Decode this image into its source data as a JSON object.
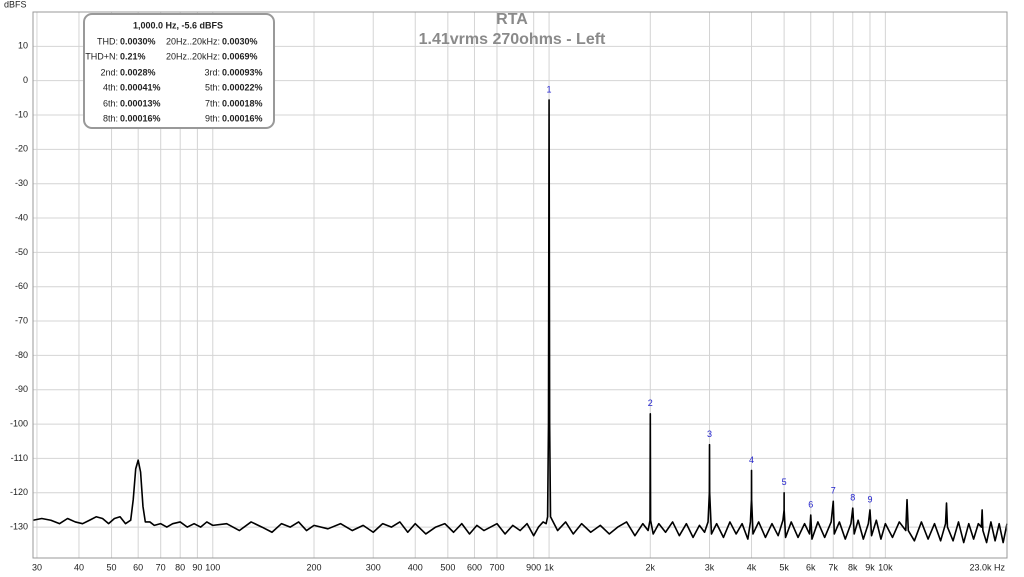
{
  "chart_data": {
    "type": "line",
    "title": "RTA",
    "subtitle": "1.41vrms 270ohms - Left",
    "y_label": "dBFS",
    "log_x": true,
    "grid": true,
    "xlim": [
      29.2,
      23000
    ],
    "ylim": [
      -139,
      20
    ],
    "xticks": [
      30,
      40,
      50,
      60,
      70,
      80,
      90,
      100,
      200,
      300,
      400,
      500,
      600,
      700,
      900,
      {
        "value": 1000,
        "label": "1k"
      },
      {
        "value": 2000,
        "label": "2k"
      },
      {
        "value": 3000,
        "label": "3k"
      },
      {
        "value": 4000,
        "label": "4k"
      },
      {
        "value": 5000,
        "label": "5k"
      },
      {
        "value": 6000,
        "label": "6k"
      },
      {
        "value": 7000,
        "label": "7k"
      },
      {
        "value": 8000,
        "label": "8k"
      },
      {
        "value": 9000,
        "label": "9k"
      },
      {
        "value": 10000,
        "label": "10k"
      },
      {
        "value": 23000,
        "label": "23.0k Hz"
      }
    ],
    "yticks": [
      10,
      0,
      -10,
      -20,
      -30,
      -40,
      -50,
      -60,
      -70,
      -80,
      -90,
      -100,
      -110,
      -120,
      -130
    ],
    "x": [
      29.2,
      31,
      33,
      35,
      37,
      39,
      41,
      43,
      45,
      47,
      49,
      51,
      53,
      55,
      57,
      58,
      59,
      60,
      61,
      62,
      63,
      65,
      67,
      70,
      73,
      76,
      80,
      84,
      88,
      92,
      96,
      100,
      110,
      120,
      130,
      140,
      150,
      160,
      170,
      180,
      190,
      200,
      220,
      240,
      260,
      280,
      300,
      320,
      340,
      360,
      380,
      400,
      430,
      460,
      490,
      520,
      550,
      580,
      610,
      640,
      670,
      700,
      740,
      780,
      820,
      860,
      900,
      930,
      960,
      980,
      990,
      996,
      1000,
      1004,
      1010,
      1060,
      1120,
      1180,
      1250,
      1330,
      1420,
      1510,
      1600,
      1700,
      1800,
      1900,
      1970,
      1996,
      2000,
      2004,
      2040,
      2120,
      2220,
      2330,
      2440,
      2560,
      2680,
      2800,
      2900,
      2970,
      2997,
      3000,
      3003,
      3040,
      3150,
      3300,
      3450,
      3600,
      3750,
      3900,
      3970,
      3998,
      4000,
      4002,
      4040,
      4200,
      4400,
      4600,
      4800,
      4960,
      4999,
      5000,
      5001,
      5050,
      5250,
      5500,
      5750,
      5950,
      6000,
      6050,
      6300,
      6600,
      6900,
      7000,
      7050,
      7300,
      7600,
      7900,
      8000,
      8080,
      8300,
      8600,
      8900,
      9000,
      9100,
      9400,
      9700,
      10000,
      10500,
      11000,
      11500,
      11600,
      11700,
      12200,
      12800,
      13400,
      14000,
      14600,
      15100,
      15200,
      15300,
      15900,
      16500,
      17100,
      17700,
      18300,
      18900,
      19300,
      19400,
      19500,
      20000,
      20600,
      21200,
      21800,
      22400,
      23000
    ],
    "series": [
      {
        "color": "#000000",
        "values": [
          -128,
          -127.5,
          -128,
          -129,
          -127.5,
          -128.5,
          -129,
          -128,
          -127,
          -127.5,
          -129,
          -127.5,
          -127,
          -129,
          -128,
          -122,
          -113,
          -110.5,
          -114,
          -124,
          -128.5,
          -128.5,
          -129.5,
          -129,
          -130,
          -129,
          -128.5,
          -130,
          -129,
          -130,
          -128.5,
          -129.5,
          -129,
          -131,
          -128.5,
          -130,
          -131.5,
          -129,
          -130,
          -128.5,
          -131,
          -129.5,
          -130.5,
          -129,
          -131,
          -129.5,
          -131.5,
          -129,
          -130,
          -128.5,
          -131.5,
          -129,
          -132,
          -130,
          -129,
          -131.5,
          -129,
          -132,
          -129.5,
          -131,
          -130,
          -129,
          -132,
          -129.5,
          -131,
          -129,
          -132.5,
          -130,
          -128.5,
          -129,
          -127,
          -100,
          -5.6,
          -100,
          -127,
          -131,
          -128.5,
          -132,
          -129,
          -131.5,
          -129.5,
          -132,
          -130,
          -128.5,
          -132.5,
          -129,
          -131,
          -128,
          -97,
          -128,
          -132,
          -129,
          -131.5,
          -128.5,
          -132.5,
          -129,
          -133,
          -129.5,
          -131.5,
          -128.5,
          -120,
          -106,
          -120,
          -132,
          -129,
          -133,
          -128.5,
          -132,
          -129,
          -133.5,
          -128.5,
          -122,
          -113.5,
          -122,
          -132,
          -128.5,
          -133,
          -129,
          -132.5,
          -128,
          -125,
          -120,
          -125,
          -133,
          -128.5,
          -133,
          -129,
          -132,
          -126.5,
          -133.5,
          -128.5,
          -133,
          -128.5,
          -122.5,
          -132,
          -128.5,
          -133.5,
          -129,
          -124.5,
          -132,
          -128,
          -133.5,
          -129,
          -125,
          -132.5,
          -128,
          -133.5,
          -129,
          -133,
          -128.5,
          -131,
          -122,
          -131,
          -134,
          -128.5,
          -133.5,
          -129,
          -134,
          -129,
          -123,
          -130,
          -134,
          -128.5,
          -134.5,
          -129,
          -133.5,
          -129,
          -130,
          -125,
          -131,
          -134.5,
          -128.5,
          -134,
          -129,
          -134.5,
          -129
        ]
      }
    ],
    "markers": [
      {
        "label": "1",
        "x": 1000,
        "y": -5.6
      },
      {
        "label": "2",
        "x": 2000,
        "y": -97
      },
      {
        "label": "3",
        "x": 3000,
        "y": -106
      },
      {
        "label": "4",
        "x": 4000,
        "y": -113.5
      },
      {
        "label": "5",
        "x": 5000,
        "y": -120
      },
      {
        "label": "6",
        "x": 6000,
        "y": -126.5
      },
      {
        "label": "7",
        "x": 7000,
        "y": -122.5
      },
      {
        "label": "8",
        "x": 8000,
        "y": -124.5
      },
      {
        "label": "9",
        "x": 9000,
        "y": -125
      }
    ],
    "marker_color": "#2222cc",
    "info": {
      "title": "1,000.0 Hz, -5.6 dBFS",
      "rows": [
        [
          "THD:",
          "0.0030%",
          "20Hz..20kHz:",
          "0.0030%"
        ],
        [
          "THD+N:",
          "0.21%",
          "20Hz..20kHz:",
          "0.0069%"
        ],
        [
          "2nd:",
          "0.0028%",
          "3rd:",
          "0.00093%"
        ],
        [
          "4th:",
          "0.00041%",
          "5th:",
          "0.00022%"
        ],
        [
          "6th:",
          "0.00013%",
          "7th:",
          "0.00018%"
        ],
        [
          "8th:",
          "0.00016%",
          "9th:",
          "0.00016%"
        ]
      ]
    }
  }
}
